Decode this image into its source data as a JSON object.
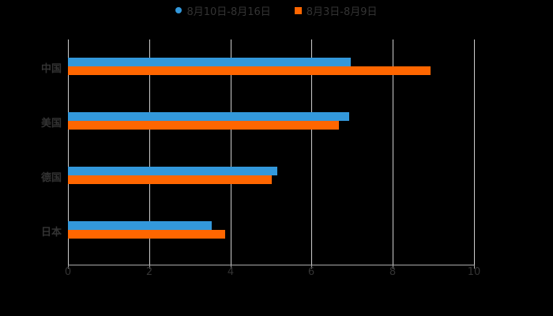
{
  "chart_data": {
    "type": "bar",
    "orientation": "horizontal",
    "categories": [
      "中国",
      "美国",
      "德国",
      "日本"
    ],
    "series": [
      {
        "name": "8月10日-8月16日",
        "color": "#3398DB",
        "values": [
          6.97,
          6.93,
          5.16,
          3.54
        ]
      },
      {
        "name": "8月3日-8月9日",
        "color": "#FF6600",
        "values": [
          8.93,
          6.67,
          5.02,
          3.87
        ]
      }
    ],
    "xlim": [
      0,
      10
    ],
    "xticks": [
      "0",
      "2",
      "4",
      "6",
      "8",
      "10"
    ],
    "title": "",
    "xlabel": "",
    "ylabel": "",
    "grid": true,
    "legend_position": "top"
  },
  "legend": {
    "items": [
      {
        "label": "8月10日-8月16日",
        "color": "#3398DB"
      },
      {
        "label": "8月3日-8月9日",
        "color": "#FF6600"
      }
    ]
  }
}
